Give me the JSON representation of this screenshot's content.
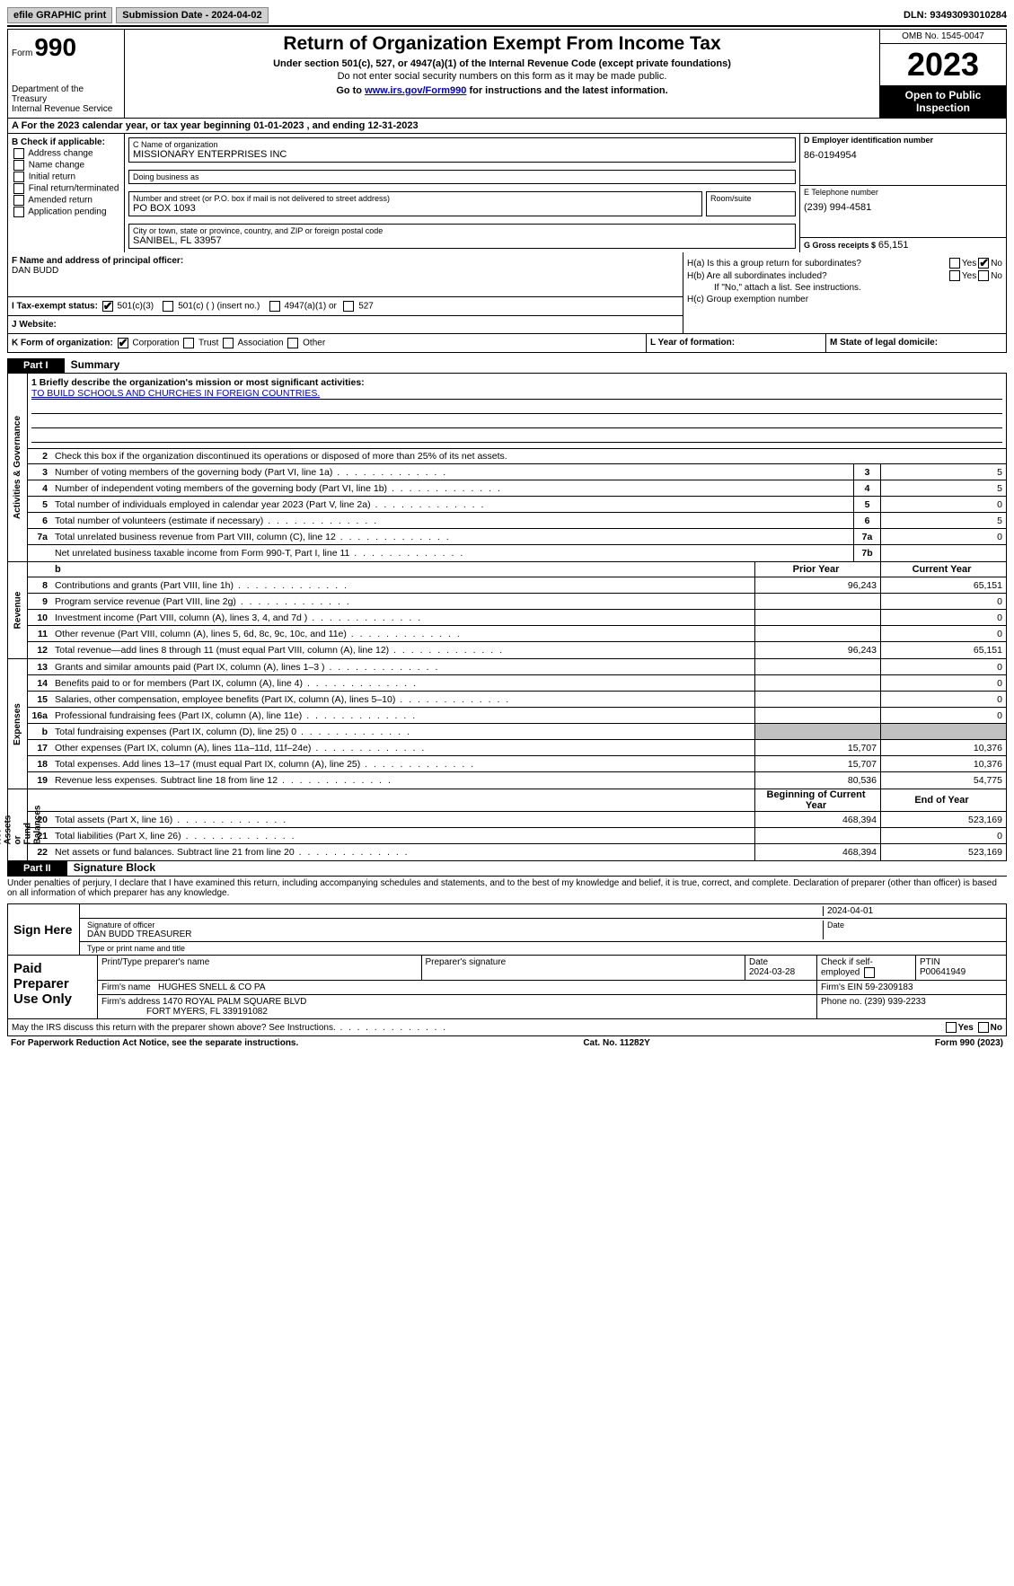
{
  "topbar": {
    "efile": "efile GRAPHIC print",
    "submission": "Submission Date - 2024-04-02",
    "dln": "DLN: 93493093010284"
  },
  "header": {
    "form_label": "Form",
    "form_number": "990",
    "dept": "Department of the Treasury\nInternal Revenue Service",
    "title": "Return of Organization Exempt From Income Tax",
    "sub1": "Under section 501(c), 527, or 4947(a)(1) of the Internal Revenue Code (except private foundations)",
    "sub2": "Do not enter social security numbers on this form as it may be made public.",
    "sub3_prefix": "Go to ",
    "sub3_link": "www.irs.gov/Form990",
    "sub3_suffix": " for instructions and the latest information.",
    "omb": "OMB No. 1545-0047",
    "year": "2023",
    "open": "Open to Public Inspection"
  },
  "row_a": "A  For the 2023 calendar year, or tax year beginning 01-01-2023    , and ending 12-31-2023",
  "col_b": {
    "heading": "B Check if applicable:",
    "items": [
      "Address change",
      "Name change",
      "Initial return",
      "Final return/terminated",
      "Amended return",
      "Application pending"
    ]
  },
  "col_c": {
    "name_label": "C Name of organization",
    "name": "MISSIONARY ENTERPRISES INC",
    "dba_label": "Doing business as",
    "dba": "",
    "addr_label": "Number and street (or P.O. box if mail is not delivered to street address)",
    "room_label": "Room/suite",
    "addr": "PO BOX 1093",
    "city_label": "City or town, state or province, country, and ZIP or foreign postal code",
    "city": "SANIBEL, FL  33957"
  },
  "col_d": {
    "ein_label": "D Employer identification number",
    "ein": "86-0194954",
    "phone_label": "E Telephone number",
    "phone": "(239) 994-4581",
    "gross_label": "G Gross receipts $",
    "gross": "65,151"
  },
  "row_f": {
    "label": "F  Name and address of principal officer:",
    "name": "DAN BUDD"
  },
  "row_h": {
    "a_label": "H(a)  Is this a group return for subordinates?",
    "b_label": "H(b)  Are all subordinates included?",
    "note": "If \"No,\" attach a list. See instructions.",
    "c_label": "H(c)  Group exemption number",
    "yes": "Yes",
    "no": "No"
  },
  "row_i": {
    "label": "I   Tax-exempt status:",
    "o1": "501(c)(3)",
    "o2": "501(c) (  ) (insert no.)",
    "o3": "4947(a)(1) or",
    "o4": "527"
  },
  "row_j": {
    "label": "J   Website:",
    "val": ""
  },
  "row_k": {
    "label": "K Form of organization:",
    "o1": "Corporation",
    "o2": "Trust",
    "o3": "Association",
    "o4": "Other",
    "l_label": "L Year of formation:",
    "l_val": "",
    "m_label": "M State of legal domicile:",
    "m_val": ""
  },
  "part1": {
    "num": "Part I",
    "title": "Summary"
  },
  "mission": {
    "label": "1   Briefly describe the organization's mission or most significant activities:",
    "text": "TO BUILD SCHOOLS AND CHURCHES IN FOREIGN COUNTRIES."
  },
  "line2": "Check this box      if the organization discontinued its operations or disposed of more than 25% of its net assets.",
  "gov_lines": [
    {
      "n": "3",
      "d": "Number of voting members of the governing body (Part VI, line 1a)",
      "box": "3",
      "v": "5"
    },
    {
      "n": "4",
      "d": "Number of independent voting members of the governing body (Part VI, line 1b)",
      "box": "4",
      "v": "5"
    },
    {
      "n": "5",
      "d": "Total number of individuals employed in calendar year 2023 (Part V, line 2a)",
      "box": "5",
      "v": "0"
    },
    {
      "n": "6",
      "d": "Total number of volunteers (estimate if necessary)",
      "box": "6",
      "v": "5"
    },
    {
      "n": "7a",
      "d": "Total unrelated business revenue from Part VIII, column (C), line 12",
      "box": "7a",
      "v": "0"
    },
    {
      "n": "",
      "d": "Net unrelated business taxable income from Form 990-T, Part I, line 11",
      "box": "7b",
      "v": ""
    }
  ],
  "rev_hdr": {
    "d": "b",
    "c1": "Prior Year",
    "c2": "Current Year"
  },
  "rev_lines": [
    {
      "n": "8",
      "d": "Contributions and grants (Part VIII, line 1h)",
      "c1": "96,243",
      "c2": "65,151"
    },
    {
      "n": "9",
      "d": "Program service revenue (Part VIII, line 2g)",
      "c1": "",
      "c2": "0"
    },
    {
      "n": "10",
      "d": "Investment income (Part VIII, column (A), lines 3, 4, and 7d )",
      "c1": "",
      "c2": "0"
    },
    {
      "n": "11",
      "d": "Other revenue (Part VIII, column (A), lines 5, 6d, 8c, 9c, 10c, and 11e)",
      "c1": "",
      "c2": "0"
    },
    {
      "n": "12",
      "d": "Total revenue—add lines 8 through 11 (must equal Part VIII, column (A), line 12)",
      "c1": "96,243",
      "c2": "65,151"
    }
  ],
  "exp_lines": [
    {
      "n": "13",
      "d": "Grants and similar amounts paid (Part IX, column (A), lines 1–3 )",
      "c1": "",
      "c2": "0"
    },
    {
      "n": "14",
      "d": "Benefits paid to or for members (Part IX, column (A), line 4)",
      "c1": "",
      "c2": "0"
    },
    {
      "n": "15",
      "d": "Salaries, other compensation, employee benefits (Part IX, column (A), lines 5–10)",
      "c1": "",
      "c2": "0"
    },
    {
      "n": "16a",
      "d": "Professional fundraising fees (Part IX, column (A), line 11e)",
      "c1": "",
      "c2": "0"
    },
    {
      "n": "b",
      "d": "Total fundraising expenses (Part IX, column (D), line 25) 0",
      "c1": "grey",
      "c2": "grey"
    },
    {
      "n": "17",
      "d": "Other expenses (Part IX, column (A), lines 11a–11d, 11f–24e)",
      "c1": "15,707",
      "c2": "10,376"
    },
    {
      "n": "18",
      "d": "Total expenses. Add lines 13–17 (must equal Part IX, column (A), line 25)",
      "c1": "15,707",
      "c2": "10,376"
    },
    {
      "n": "19",
      "d": "Revenue less expenses. Subtract line 18 from line 12",
      "c1": "80,536",
      "c2": "54,775"
    }
  ],
  "net_hdr": {
    "c1": "Beginning of Current Year",
    "c2": "End of Year"
  },
  "net_lines": [
    {
      "n": "20",
      "d": "Total assets (Part X, line 16)",
      "c1": "468,394",
      "c2": "523,169"
    },
    {
      "n": "21",
      "d": "Total liabilities (Part X, line 26)",
      "c1": "",
      "c2": "0"
    },
    {
      "n": "22",
      "d": "Net assets or fund balances. Subtract line 21 from line 20",
      "c1": "468,394",
      "c2": "523,169"
    }
  ],
  "vlabels": {
    "gov": "Activities & Governance",
    "rev": "Revenue",
    "exp": "Expenses",
    "net": "Net Assets or\nFund Balances"
  },
  "part2": {
    "num": "Part II",
    "title": "Signature Block"
  },
  "sig_intro": "Under penalties of perjury, I declare that I have examined this return, including accompanying schedules and statements, and to the best of my knowledge and belief, it is true, correct, and complete. Declaration of preparer (other than officer) is based on all information of which preparer has any knowledge.",
  "sign": {
    "here": "Sign Here",
    "sig_label": "Signature of officer",
    "officer": "DAN BUDD TREASURER",
    "name_label": "Type or print name and title",
    "date_label": "Date",
    "date": "2024-04-01"
  },
  "paid": {
    "title": "Paid Preparer Use Only",
    "h1": "Print/Type preparer's name",
    "h2": "Preparer's signature",
    "h3": "Date",
    "h4": "Check        if self-employed",
    "h5": "PTIN",
    "date": "2024-03-28",
    "ptin": "P00641949",
    "firm_label": "Firm's name",
    "firm": "HUGHES SNELL & CO PA",
    "ein_label": "Firm's EIN",
    "ein": "59-2309183",
    "addr_label": "Firm's address",
    "addr1": "1470 ROYAL PALM SQUARE BLVD",
    "addr2": "FORT MYERS, FL  339191082",
    "phone_label": "Phone no.",
    "phone": "(239) 939-2233"
  },
  "discuss": "May the IRS discuss this return with the preparer shown above? See Instructions.",
  "footer": {
    "left": "For Paperwork Reduction Act Notice, see the separate instructions.",
    "mid": "Cat. No. 11282Y",
    "right": "Form 990 (2023)"
  }
}
